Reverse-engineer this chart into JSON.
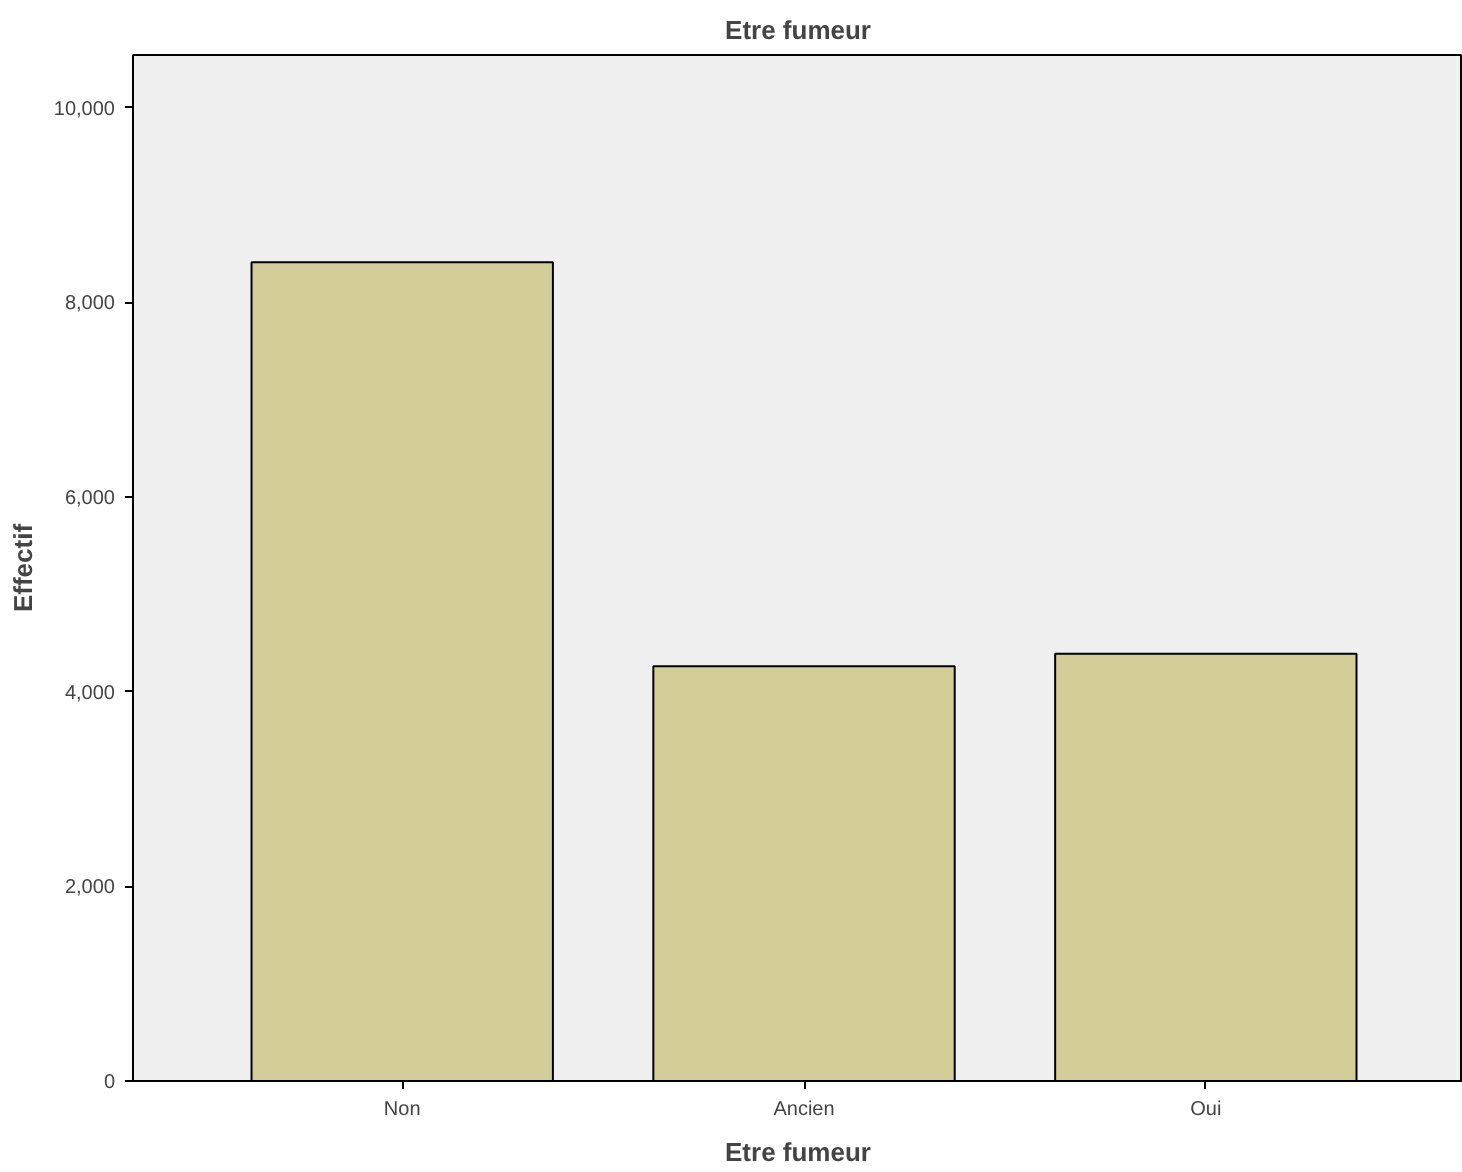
{
  "chart_data": {
    "type": "bar",
    "title": "Etre fumeur",
    "xlabel": "Etre fumeur",
    "ylabel": "Effectif",
    "categories": [
      "Non",
      "Ancien",
      "Oui"
    ],
    "values": [
      8410,
      4260,
      4390
    ],
    "color": "#d3ce97",
    "ylim": [
      0,
      10540
    ],
    "yticks": [
      0,
      {
        "value": 2000,
        "label": "2,000"
      },
      {
        "value": 4000,
        "label": "4,000"
      },
      {
        "value": 6000,
        "label": "6,000"
      },
      {
        "value": 8000,
        "label": "8,000"
      },
      {
        "value": 10000,
        "label": "10,000"
      }
    ],
    "grid": false
  }
}
